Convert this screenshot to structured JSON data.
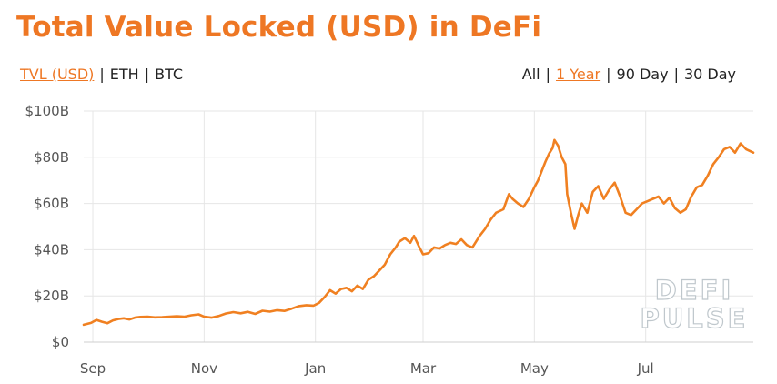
{
  "header": {
    "title": "Total Value Locked (USD) in DeFi"
  },
  "metric_tabs": [
    {
      "label": "TVL (USD)",
      "active": true
    },
    {
      "label": "ETH",
      "active": false
    },
    {
      "label": "BTC",
      "active": false
    }
  ],
  "range_tabs": [
    {
      "label": "All",
      "active": false
    },
    {
      "label": "1 Year",
      "active": true
    },
    {
      "label": "90 Day",
      "active": false
    },
    {
      "label": "30 Day",
      "active": false
    }
  ],
  "watermark": [
    "DEFI",
    "PULSE"
  ],
  "colors": {
    "accent": "#ee7724",
    "line": "#f08021",
    "grid": "#e6e6e6"
  },
  "chart_data": {
    "type": "line",
    "title": "Total Value Locked (USD) in DeFi",
    "xlabel": "",
    "ylabel": "",
    "xlim": [
      "2020-08-27",
      "2021-08-29"
    ],
    "ylim": [
      0,
      100
    ],
    "y_unit": "billion USD",
    "y_ticks": [
      {
        "value": 0,
        "label": "$0"
      },
      {
        "value": 20,
        "label": "$20B"
      },
      {
        "value": 40,
        "label": "$40B"
      },
      {
        "value": 60,
        "label": "$60B"
      },
      {
        "value": 80,
        "label": "$80B"
      },
      {
        "value": 100,
        "label": "$100B"
      }
    ],
    "x_ticks": [
      {
        "date": "2020-09-01",
        "label": "Sep"
      },
      {
        "date": "2020-11-01",
        "label": "Nov"
      },
      {
        "date": "2021-01-01",
        "label": "Jan"
      },
      {
        "date": "2021-03-01",
        "label": "Mar"
      },
      {
        "date": "2021-05-01",
        "label": "May"
      },
      {
        "date": "2021-07-01",
        "label": "Jul"
      }
    ],
    "grid": true,
    "series": [
      {
        "values": [
          [
            "2020-08-27",
            7.5
          ],
          [
            "2020-08-31",
            8.3
          ],
          [
            "2020-09-03",
            9.6
          ],
          [
            "2020-09-06",
            8.8
          ],
          [
            "2020-09-09",
            8.2
          ],
          [
            "2020-09-12",
            9.4
          ],
          [
            "2020-09-15",
            10.0
          ],
          [
            "2020-09-18",
            10.3
          ],
          [
            "2020-09-21",
            9.8
          ],
          [
            "2020-09-24",
            10.6
          ],
          [
            "2020-09-27",
            10.9
          ],
          [
            "2020-10-01",
            11.0
          ],
          [
            "2020-10-05",
            10.7
          ],
          [
            "2020-10-09",
            10.8
          ],
          [
            "2020-10-13",
            11.0
          ],
          [
            "2020-10-17",
            11.2
          ],
          [
            "2020-10-21",
            11.0
          ],
          [
            "2020-10-25",
            11.6
          ],
          [
            "2020-10-29",
            12.0
          ],
          [
            "2020-11-01",
            11.0
          ],
          [
            "2020-11-05",
            10.6
          ],
          [
            "2020-11-09",
            11.3
          ],
          [
            "2020-11-13",
            12.4
          ],
          [
            "2020-11-17",
            13.0
          ],
          [
            "2020-11-21",
            12.5
          ],
          [
            "2020-11-25",
            13.1
          ],
          [
            "2020-11-29",
            12.2
          ],
          [
            "2020-12-03",
            13.6
          ],
          [
            "2020-12-07",
            13.2
          ],
          [
            "2020-12-11",
            13.8
          ],
          [
            "2020-12-15",
            13.5
          ],
          [
            "2020-12-19",
            14.5
          ],
          [
            "2020-12-23",
            15.6
          ],
          [
            "2020-12-27",
            16.0
          ],
          [
            "2020-12-31",
            15.8
          ],
          [
            "2021-01-03",
            17.0
          ],
          [
            "2021-01-06",
            19.5
          ],
          [
            "2021-01-09",
            22.5
          ],
          [
            "2021-01-12",
            21.0
          ],
          [
            "2021-01-15",
            23.0
          ],
          [
            "2021-01-18",
            23.5
          ],
          [
            "2021-01-21",
            22.0
          ],
          [
            "2021-01-24",
            24.5
          ],
          [
            "2021-01-27",
            23.0
          ],
          [
            "2021-01-30",
            27.0
          ],
          [
            "2021-02-02",
            28.5
          ],
          [
            "2021-02-05",
            31.0
          ],
          [
            "2021-02-08",
            33.5
          ],
          [
            "2021-02-11",
            38.0
          ],
          [
            "2021-02-14",
            41.0
          ],
          [
            "2021-02-16",
            43.5
          ],
          [
            "2021-02-19",
            45.0
          ],
          [
            "2021-02-22",
            43.0
          ],
          [
            "2021-02-24",
            46.0
          ],
          [
            "2021-02-27",
            41.0
          ],
          [
            "2021-03-01",
            38.0
          ],
          [
            "2021-03-04",
            38.5
          ],
          [
            "2021-03-07",
            41.0
          ],
          [
            "2021-03-10",
            40.5
          ],
          [
            "2021-03-13",
            42.0
          ],
          [
            "2021-03-16",
            43.0
          ],
          [
            "2021-03-19",
            42.5
          ],
          [
            "2021-03-22",
            44.5
          ],
          [
            "2021-03-25",
            42.0
          ],
          [
            "2021-03-28",
            41.0
          ],
          [
            "2021-04-01",
            46.0
          ],
          [
            "2021-04-04",
            49.0
          ],
          [
            "2021-04-07",
            53.0
          ],
          [
            "2021-04-10",
            56.0
          ],
          [
            "2021-04-14",
            57.5
          ],
          [
            "2021-04-17",
            64.0
          ],
          [
            "2021-04-19",
            62.0
          ],
          [
            "2021-04-22",
            60.0
          ],
          [
            "2021-04-25",
            58.5
          ],
          [
            "2021-04-28",
            62.0
          ],
          [
            "2021-05-01",
            67.0
          ],
          [
            "2021-05-03",
            70.0
          ],
          [
            "2021-05-05",
            74.0
          ],
          [
            "2021-05-07",
            78.0
          ],
          [
            "2021-05-09",
            81.5
          ],
          [
            "2021-05-11",
            84.0
          ],
          [
            "2021-05-12",
            87.5
          ],
          [
            "2021-05-14",
            85.0
          ],
          [
            "2021-05-16",
            80.0
          ],
          [
            "2021-05-18",
            77.0
          ],
          [
            "2021-05-19",
            64.0
          ],
          [
            "2021-05-21",
            56.0
          ],
          [
            "2021-05-23",
            49.0
          ],
          [
            "2021-05-25",
            55.0
          ],
          [
            "2021-05-27",
            60.0
          ],
          [
            "2021-05-30",
            56.0
          ],
          [
            "2021-06-02",
            65.0
          ],
          [
            "2021-06-05",
            67.5
          ],
          [
            "2021-06-08",
            62.0
          ],
          [
            "2021-06-11",
            66.0
          ],
          [
            "2021-06-14",
            69.0
          ],
          [
            "2021-06-17",
            63.0
          ],
          [
            "2021-06-20",
            56.0
          ],
          [
            "2021-06-23",
            55.0
          ],
          [
            "2021-06-26",
            57.5
          ],
          [
            "2021-06-29",
            60.0
          ],
          [
            "2021-07-02",
            61.0
          ],
          [
            "2021-07-05",
            62.0
          ],
          [
            "2021-07-08",
            63.0
          ],
          [
            "2021-07-11",
            60.0
          ],
          [
            "2021-07-14",
            62.5
          ],
          [
            "2021-07-17",
            58.0
          ],
          [
            "2021-07-20",
            56.0
          ],
          [
            "2021-07-23",
            57.5
          ],
          [
            "2021-07-26",
            63.0
          ],
          [
            "2021-07-29",
            67.0
          ],
          [
            "2021-08-01",
            68.0
          ],
          [
            "2021-08-04",
            72.0
          ],
          [
            "2021-08-07",
            77.0
          ],
          [
            "2021-08-10",
            80.0
          ],
          [
            "2021-08-13",
            83.5
          ],
          [
            "2021-08-16",
            84.5
          ],
          [
            "2021-08-19",
            82.0
          ],
          [
            "2021-08-22",
            86.0
          ],
          [
            "2021-08-25",
            83.5
          ],
          [
            "2021-08-29",
            82.0
          ]
        ]
      }
    ]
  }
}
